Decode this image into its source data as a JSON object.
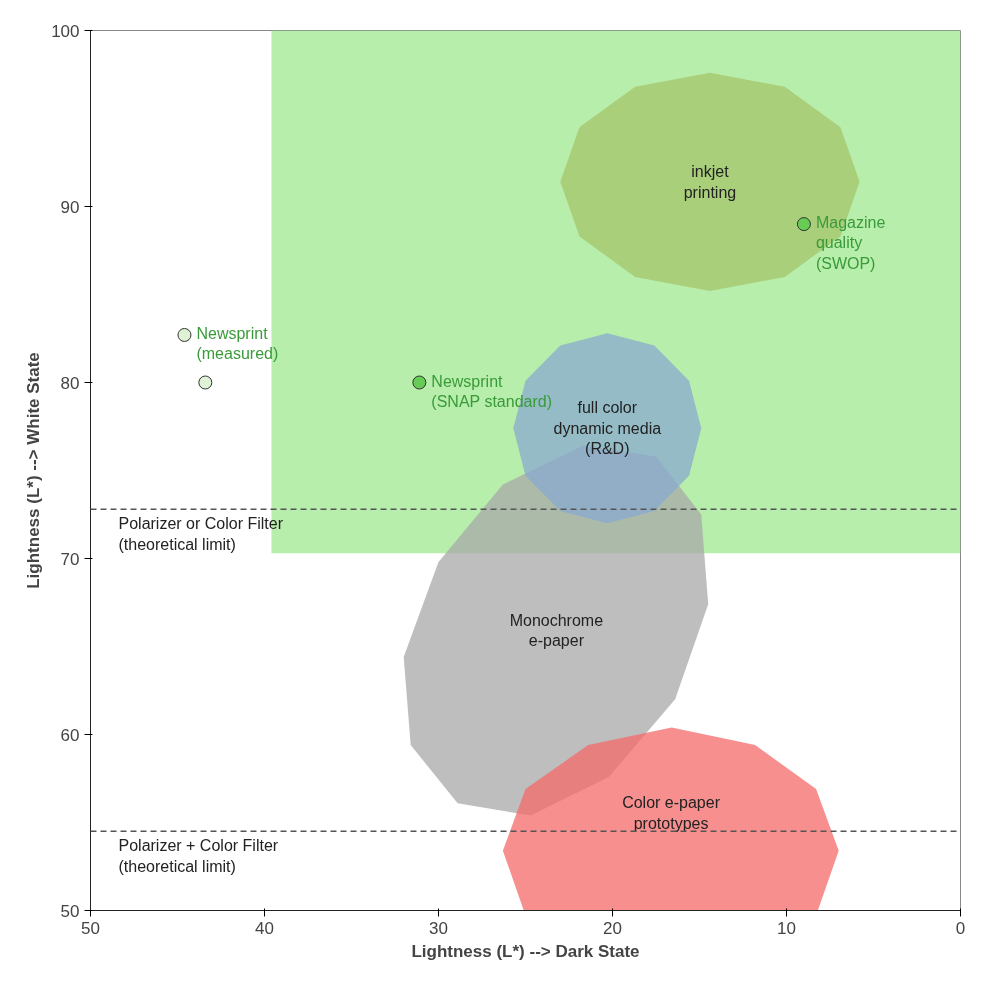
{
  "chart_data": {
    "type": "scatter",
    "xlabel": "Lightness (L*) --> Dark State",
    "ylabel": "Lightness (L*) --> White State",
    "xlim": [
      50,
      0
    ],
    "ylim": [
      50,
      100
    ],
    "xticks": [
      50,
      40,
      30,
      20,
      10,
      0
    ],
    "yticks": [
      50,
      60,
      70,
      80,
      90,
      100
    ],
    "grid": false,
    "series": [
      {
        "type": "area",
        "color": "#9fe88f",
        "x": [
          39.6,
          0,
          0,
          39.6
        ],
        "values": [
          100,
          100,
          70.3,
          70.3
        ]
      },
      {
        "type": "area",
        "name": "inkjet\nprinting",
        "color": "#a6c46a",
        "x": [
          23.0,
          21.9,
          18.7,
          14.4,
          10.1,
          6.9,
          5.8,
          6.9,
          10.1,
          14.4,
          18.7,
          21.9
        ],
        "values": [
          91.4,
          94.5,
          96.8,
          97.6,
          96.8,
          94.5,
          91.4,
          88.3,
          86.0,
          85.2,
          86.0,
          88.3
        ]
      },
      {
        "type": "area",
        "name": "Monochrome\ne-paper",
        "color": "#a8a8a8",
        "x": [
          17.5,
          14.9,
          14.5,
          16.4,
          20.2,
          24.7,
          28.9,
          31.6,
          32.0,
          30.0,
          26.3,
          21.7
        ],
        "values": [
          75.8,
          72.5,
          67.4,
          62.0,
          57.6,
          55.4,
          56.1,
          59.4,
          64.4,
          69.8,
          74.2,
          76.4
        ]
      },
      {
        "type": "area",
        "name": "full color\ndynamic media\n(R&D)",
        "color": "#8aaad0",
        "x": [
          25.7,
          25.0,
          23.0,
          20.3,
          17.6,
          15.6,
          14.9,
          15.6,
          17.6,
          20.3,
          23.0,
          25.0
        ],
        "values": [
          77.4,
          80.1,
          82.1,
          82.8,
          82.1,
          80.1,
          77.4,
          74.7,
          72.7,
          72.0,
          72.7,
          74.7
        ]
      },
      {
        "type": "area",
        "name": "Color e-paper\nprototypes",
        "color": "#f46a6a",
        "x": [
          25.1,
          26.3,
          25.0,
          21.4,
          16.6,
          11.8,
          8.3,
          7.0,
          8.2
        ],
        "values": [
          50.0,
          53.4,
          56.9,
          59.4,
          60.4,
          59.4,
          56.9,
          53.4,
          50.0
        ]
      },
      {
        "marker": "circle",
        "name": "Newsprint\n(measured)",
        "color": "#dff2d6",
        "x": [
          44.6,
          43.4
        ],
        "values": [
          82.7,
          80.0
        ]
      },
      {
        "marker": "circle",
        "name": "Newsprint\n(SNAP standard)",
        "color": "#66cc55",
        "x": [
          31.1
        ],
        "values": [
          80.0
        ]
      },
      {
        "marker": "circle",
        "name": "Magazine\nquality\n(SWOP)",
        "color": "#66cc55",
        "x": [
          9.0
        ],
        "values": [
          89.0
        ]
      }
    ],
    "ref_lines": [
      {
        "axis": "y",
        "value": 72.8,
        "label": "Polarizer or Color Filter\n(theoretical limit)",
        "line_style": "dashed"
      },
      {
        "axis": "y",
        "value": 54.5,
        "label": "Polarizer + Color Filter\n(theoretical limit)",
        "line_style": "dashed"
      }
    ]
  }
}
